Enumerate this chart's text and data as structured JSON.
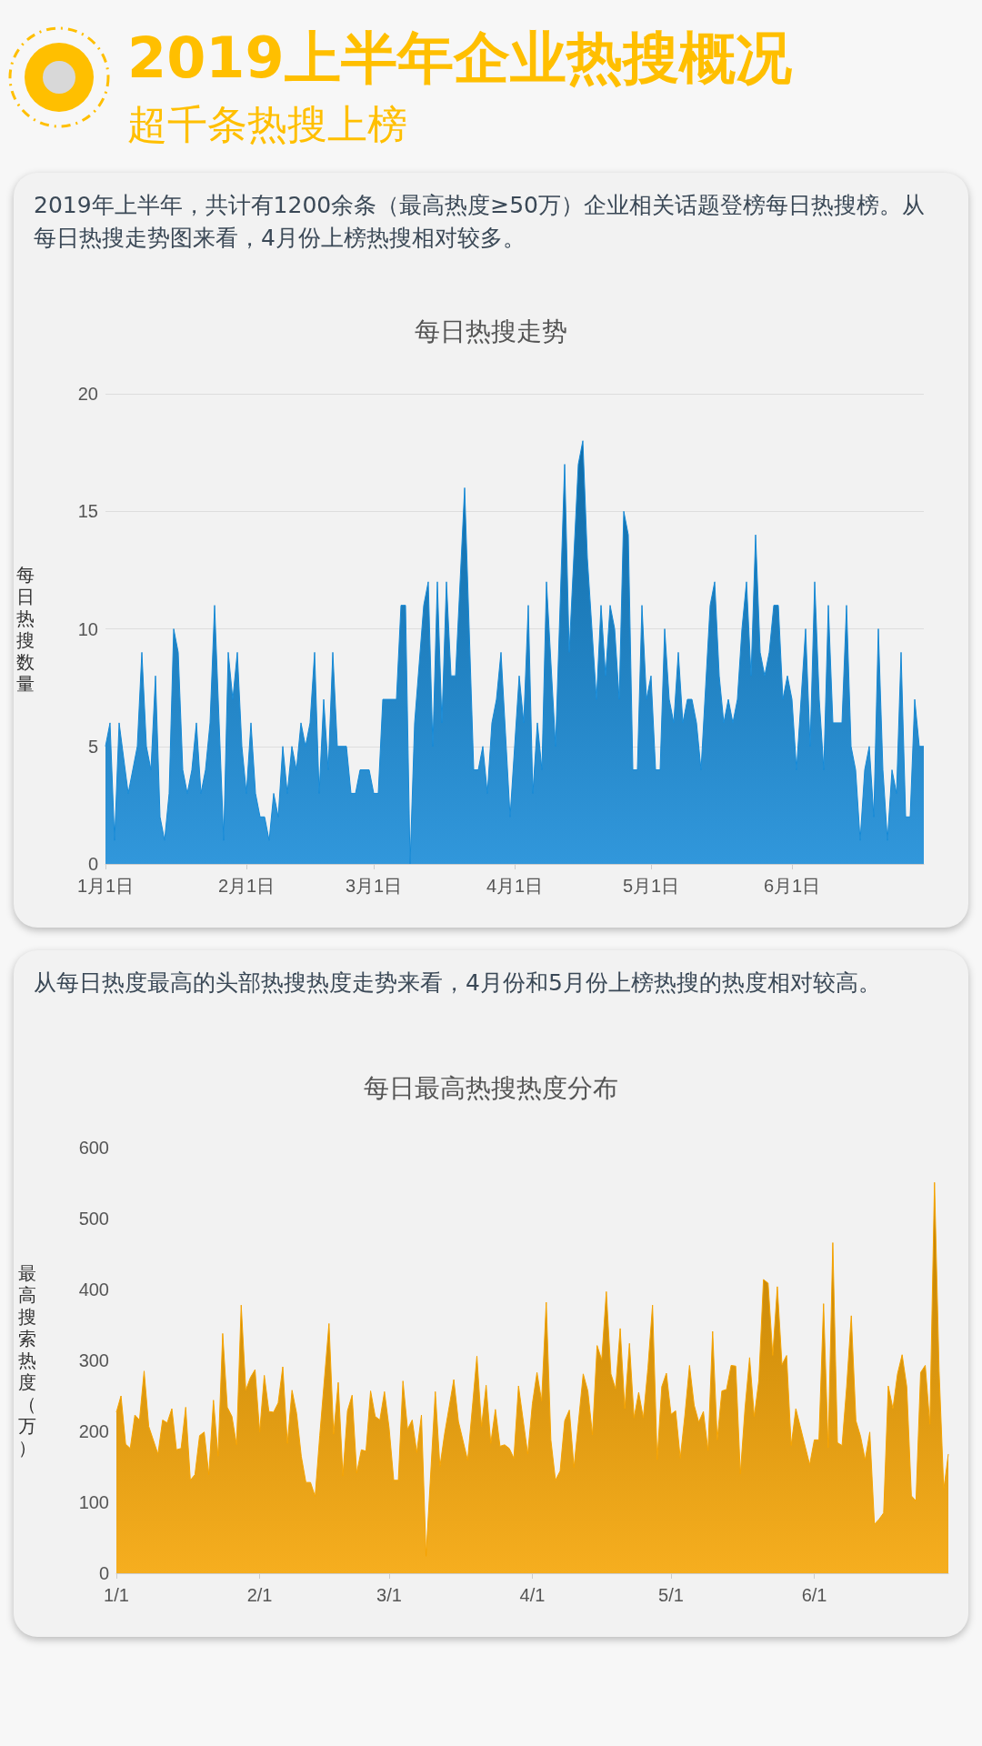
{
  "chart_data": [
    {
      "type": "other",
      "title": "2019上半年企业热搜概况",
      "subtitle": "超千条热搜上榜"
    },
    {
      "type": "area",
      "title": "每日热搜走势",
      "ylabel": "每日热搜数量",
      "annotations": [
        "2019年上半年，共计有1200余条（最高热度≥50万）企业相关话题登榜每日热搜榜。从每日热搜走势图来看，4月份上榜热搜相对较多。"
      ],
      "grid": "y",
      "marker": "none",
      "xlim": [
        "--01-01",
        "--06-30"
      ],
      "xticks": [
        {
          "value": "--01-01",
          "label": "1月1日"
        },
        {
          "value": "--02-01",
          "label": "2月1日"
        },
        {
          "value": "--03-01",
          "label": "3月1日"
        },
        {
          "value": "--04-01",
          "label": "4月1日"
        },
        {
          "value": "--05-01",
          "label": "5月1日"
        },
        {
          "value": "--06-01",
          "label": "6月1日"
        }
      ],
      "ylim": [
        0,
        20
      ],
      "yticks": [
        0,
        5,
        10,
        15,
        20
      ],
      "series": [
        {
          "color": "#1589d6",
          "x": [
            "--01-01",
            "--01-02",
            "--01-03",
            "--01-04",
            "--01-06",
            "--01-08",
            "--01-09",
            "--01-10",
            "--01-11",
            "--01-12",
            "--01-13",
            "--01-14",
            "--01-15",
            "--01-16",
            "--01-17",
            "--01-18",
            "--01-19",
            "--01-20",
            "--01-21",
            "--01-22",
            "--01-23",
            "--01-24",
            "--01-25",
            "--01-27",
            "--01-28",
            "--01-29",
            "--01-30",
            "--01-31",
            "--02-01",
            "--02-02",
            "--02-03",
            "--02-04",
            "--02-05",
            "--02-06",
            "--02-07",
            "--02-08",
            "--02-09",
            "--02-10",
            "--02-11",
            "--02-12",
            "--02-13",
            "--02-14",
            "--02-15",
            "--02-16",
            "--02-17",
            "--02-18",
            "--02-19",
            "--02-20",
            "--02-21",
            "--02-23",
            "--02-24",
            "--02-25",
            "--02-26",
            "--02-28",
            "--03-01",
            "--03-02",
            "--03-03",
            "--03-06",
            "--03-07",
            "--03-08",
            "--03-09",
            "--03-10",
            "--03-12",
            "--03-13",
            "--03-14",
            "--03-15",
            "--03-16",
            "--03-17",
            "--03-18",
            "--03-19",
            "--03-21",
            "--03-23",
            "--03-24",
            "--03-25",
            "--03-26",
            "--03-27",
            "--03-28",
            "--03-29",
            "--03-31",
            "--04-02",
            "--04-03",
            "--04-04",
            "--04-05",
            "--04-06",
            "--04-07",
            "--04-08",
            "--04-10",
            "--04-12",
            "--04-13",
            "--04-15",
            "--04-16",
            "--04-17",
            "--04-19",
            "--04-20",
            "--04-21",
            "--04-22",
            "--04-23",
            "--04-24",
            "--04-25",
            "--04-26",
            "--04-27",
            "--04-28",
            "--04-29",
            "--04-30",
            "--05-01",
            "--05-02",
            "--05-03",
            "--05-04",
            "--05-05",
            "--05-06",
            "--05-07",
            "--05-08",
            "--05-09",
            "--05-10",
            "--05-11",
            "--05-12",
            "--05-14",
            "--05-15",
            "--05-16",
            "--05-17",
            "--05-18",
            "--05-19",
            "--05-20",
            "--05-21",
            "--05-22",
            "--05-23",
            "--05-24",
            "--05-25",
            "--05-26",
            "--05-27",
            "--05-28",
            "--05-29",
            "--05-30",
            "--05-31",
            "--06-01",
            "--06-02",
            "--06-04",
            "--06-05",
            "--06-06",
            "--06-07",
            "--06-08",
            "--06-09",
            "--06-10",
            "--06-12",
            "--06-13",
            "--06-14",
            "--06-15",
            "--06-16",
            "--06-17",
            "--06-18",
            "--06-19",
            "--06-20",
            "--06-21",
            "--06-22",
            "--06-23",
            "--06-24",
            "--06-25",
            "--06-26",
            "--06-27",
            "--06-28",
            "--06-29",
            "--06-30"
          ],
          "values": [
            5,
            6,
            1,
            6,
            3,
            5,
            9,
            5,
            4,
            8,
            2,
            1,
            3,
            10,
            9,
            4,
            3,
            4,
            6,
            3,
            4,
            6,
            11,
            1,
            9,
            7,
            9,
            5,
            3,
            6,
            3,
            2,
            2,
            1,
            3,
            2,
            5,
            3,
            5,
            4,
            6,
            5,
            6,
            9,
            3,
            7,
            4,
            9,
            5,
            5,
            3,
            3,
            4,
            4,
            3,
            3,
            7,
            7,
            11,
            11,
            0,
            6,
            11,
            12,
            5,
            12,
            6,
            12,
            8,
            8,
            16,
            4,
            4,
            5,
            3,
            6,
            7,
            9,
            2,
            8,
            6,
            11,
            3,
            6,
            4,
            12,
            5,
            17,
            9,
            17,
            18,
            13,
            7,
            11,
            8,
            11,
            10,
            7,
            15,
            14,
            4,
            4,
            11,
            7,
            8,
            4,
            4,
            10,
            7,
            6,
            9,
            6,
            7,
            7,
            6,
            4,
            11,
            12,
            8,
            6,
            7,
            6,
            7,
            10,
            12,
            8,
            14,
            9,
            8,
            9,
            11,
            11,
            7,
            8,
            7,
            4,
            10,
            5,
            12,
            7,
            4,
            11,
            6,
            6,
            11,
            5,
            4,
            1,
            4,
            5,
            2,
            10,
            4,
            1,
            4,
            3,
            9,
            2,
            2,
            7,
            5,
            5
          ]
        }
      ]
    },
    {
      "type": "area",
      "title": "每日最高热搜热度分布",
      "ylabel": "最高搜索热度（万）",
      "annotations": [
        "从每日热度最高的头部热搜热度走势来看，4月份和5月份上榜热搜的热度相对较高。"
      ],
      "grid": false,
      "marker": "none",
      "xlim": [
        "--01-01",
        "--06-30"
      ],
      "xticks": [
        {
          "value": "--01-01",
          "label": "1/1"
        },
        {
          "value": "--02-01",
          "label": "2/1"
        },
        {
          "value": "--03-01",
          "label": "3/1"
        },
        {
          "value": "--04-01",
          "label": "4/1"
        },
        {
          "value": "--05-01",
          "label": "5/1"
        },
        {
          "value": "--06-01",
          "label": "6/1"
        }
      ],
      "ylim": [
        0,
        600
      ],
      "yticks": [
        0,
        100,
        200,
        300,
        400,
        500,
        600
      ],
      "series": [
        {
          "color": "#f5a300",
          "x": [
            "--01-01",
            "--01-02",
            "--01-03",
            "--01-04",
            "--01-05",
            "--01-06",
            "--01-07",
            "--01-08",
            "--01-10",
            "--01-11",
            "--01-12",
            "--01-13",
            "--01-14",
            "--01-15",
            "--01-16",
            "--01-17",
            "--01-18",
            "--01-19",
            "--01-20",
            "--01-21",
            "--01-22",
            "--01-23",
            "--01-24",
            "--01-25",
            "--01-26",
            "--01-27",
            "--01-28",
            "--01-29",
            "--01-30",
            "--01-31",
            "--02-01",
            "--02-02",
            "--02-03",
            "--02-04",
            "--02-05",
            "--02-06",
            "--02-07",
            "--02-08",
            "--02-09",
            "--02-10",
            "--02-11",
            "--02-12",
            "--02-13",
            "--02-14",
            "--02-16",
            "--02-17",
            "--02-18",
            "--02-19",
            "--02-20",
            "--02-21",
            "--02-22",
            "--02-23",
            "--02-24",
            "--02-25",
            "--02-26",
            "--02-27",
            "--02-28",
            "--03-01",
            "--03-02",
            "--03-03",
            "--03-04",
            "--03-05",
            "--03-06",
            "--03-07",
            "--03-08",
            "--03-09",
            "--03-11",
            "--03-12",
            "--03-13",
            "--03-15",
            "--03-16",
            "--03-18",
            "--03-20",
            "--03-21",
            "--03-22",
            "--03-23",
            "--03-24",
            "--03-25",
            "--03-26",
            "--03-27",
            "--03-28",
            "--03-29",
            "--03-31",
            "--04-01",
            "--04-02",
            "--04-03",
            "--04-04",
            "--04-05",
            "--04-06",
            "--04-07",
            "--04-08",
            "--04-09",
            "--04-10",
            "--04-12",
            "--04-13",
            "--04-14",
            "--04-15",
            "--04-16",
            "--04-17",
            "--04-18",
            "--04-19",
            "--04-20",
            "--04-21",
            "--04-22",
            "--04-23",
            "--04-24",
            "--04-25",
            "--04-26",
            "--04-27",
            "--04-28",
            "--04-29",
            "--04-30",
            "--05-01",
            "--05-02",
            "--05-03",
            "--05-04",
            "--05-05",
            "--05-06",
            "--05-07",
            "--05-08",
            "--05-09",
            "--05-10",
            "--05-11",
            "--05-12",
            "--05-13",
            "--05-14",
            "--05-15",
            "--05-16",
            "--05-17",
            "--05-18",
            "--05-19",
            "--05-20",
            "--05-21",
            "--05-22",
            "--05-23",
            "--05-24",
            "--05-25",
            "--05-26",
            "--05-27",
            "--05-28",
            "--05-31",
            "--06-01",
            "--06-02",
            "--06-03",
            "--06-04",
            "--06-05",
            "--06-06",
            "--06-07",
            "--06-08",
            "--06-09",
            "--06-10",
            "--06-11",
            "--06-12",
            "--06-13",
            "--06-14",
            "--06-15",
            "--06-16",
            "--06-17",
            "--06-18",
            "--06-19",
            "--06-20",
            "--06-21",
            "--06-22",
            "--06-23",
            "--06-24",
            "--06-25",
            "--06-26",
            "--06-27",
            "--06-28",
            "--06-29",
            "--06-30"
          ],
          "values": [
            227,
            250,
            182,
            176,
            223,
            216,
            285,
            207,
            168,
            216,
            212,
            232,
            174,
            176,
            234,
            131,
            139,
            194,
            199,
            139,
            244,
            165,
            338,
            234,
            221,
            181,
            378,
            258,
            276,
            287,
            199,
            279,
            228,
            227,
            240,
            291,
            183,
            258,
            225,
            165,
            128,
            128,
            108,
            194,
            352,
            196,
            269,
            137,
            229,
            251,
            141,
            174,
            172,
            257,
            221,
            216,
            256,
            205,
            131,
            131,
            271,
            203,
            216,
            170,
            223,
            24,
            256,
            150,
            196,
            273,
            214,
            159,
            306,
            207,
            265,
            183,
            231,
            179,
            181,
            176,
            162,
            264,
            168,
            239,
            283,
            243,
            382,
            188,
            131,
            144,
            215,
            230,
            149,
            281,
            257,
            195,
            321,
            301,
            397,
            281,
            260,
            345,
            232,
            324,
            219,
            255,
            219,
            289,
            378,
            160,
            263,
            282,
            224,
            229,
            162,
            223,
            293,
            237,
            213,
            228,
            173,
            341,
            188,
            257,
            259,
            293,
            292,
            140,
            232,
            304,
            221,
            272,
            414,
            409,
            307,
            404,
            294,
            307,
            180,
            232,
            153,
            188,
            188,
            380,
            177,
            466,
            184,
            180,
            263,
            363,
            215,
            193,
            160,
            199,
            69,
            76,
            85,
            264,
            232,
            281,
            308,
            263,
            109,
            102,
            283,
            293,
            210,
            551,
            285,
            118,
            168
          ]
        }
      ]
    }
  ]
}
